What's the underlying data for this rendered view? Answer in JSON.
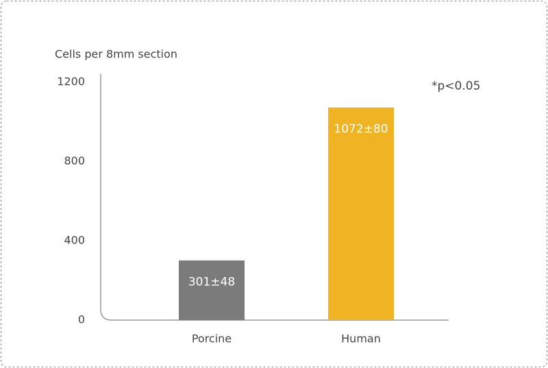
{
  "chart_data": {
    "type": "bar",
    "y_label": "Cells per 8mm section",
    "annotation": "*p<0.05",
    "categories": [
      "Porcine",
      "Human"
    ],
    "values": [
      301,
      1072
    ],
    "value_labels": [
      "301±48",
      "1072±80"
    ],
    "colors": [
      "#7b7b7b",
      "#f0b323"
    ],
    "ylim": [
      0,
      1200
    ],
    "yticks": [
      0,
      400,
      800,
      1200
    ],
    "grid": false
  }
}
